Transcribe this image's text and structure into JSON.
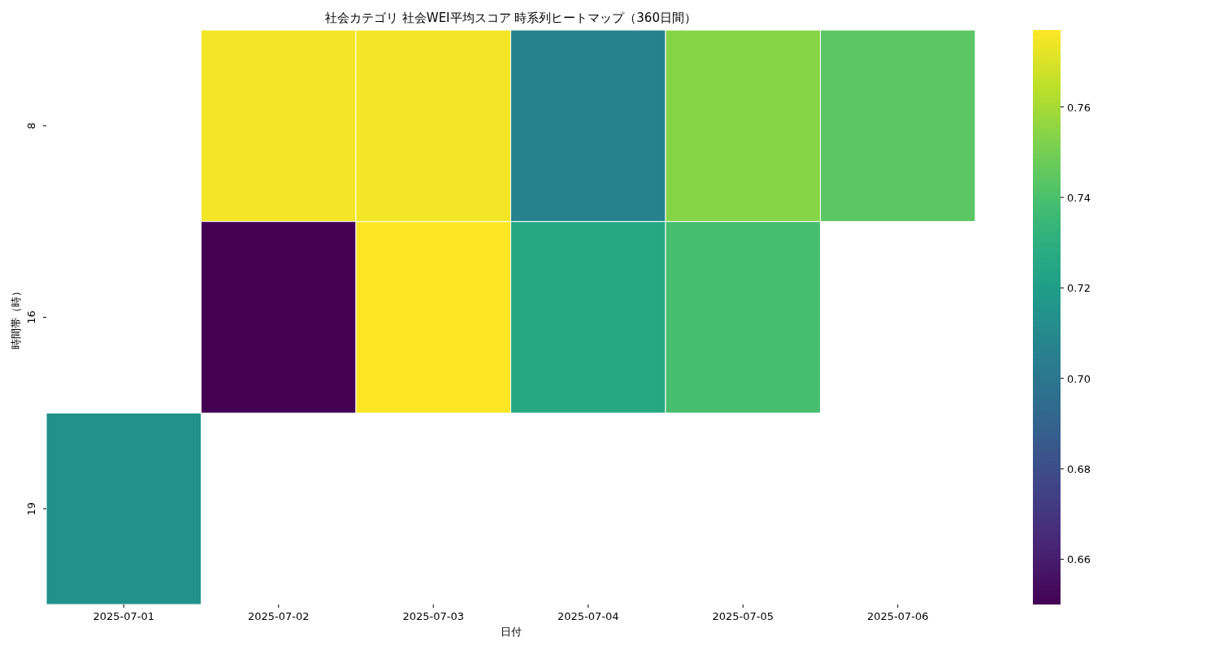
{
  "chart_data": {
    "type": "heatmap",
    "title": "社会カテゴリ 社会WEI平均スコア 時系列ヒートマップ（360日間）",
    "xlabel": "日付",
    "ylabel": "時間帯（時）",
    "categories": [
      "2025-07-01",
      "2025-07-02",
      "2025-07-03",
      "2025-07-04",
      "2025-07-05",
      "2025-07-06"
    ],
    "y_categories": [
      "8",
      "16",
      "19"
    ],
    "cells": [
      [
        null,
        0.775,
        0.775,
        0.707,
        0.754,
        0.744
      ],
      [
        null,
        0.65,
        0.777,
        0.726,
        0.739,
        null
      ],
      [
        0.714,
        null,
        null,
        null,
        null,
        null
      ]
    ],
    "clim": [
      0.65,
      0.777
    ],
    "cticks": [
      0.66,
      0.68,
      {
        "value": 0.7,
        "label": "0.70"
      },
      0.72,
      0.74,
      0.76
    ]
  }
}
